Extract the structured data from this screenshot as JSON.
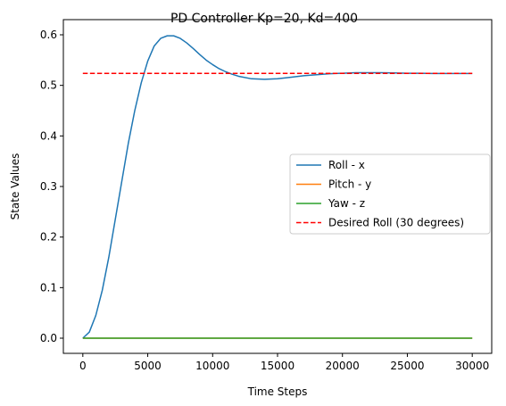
{
  "chart_data": {
    "type": "line",
    "title": "PD Controller Kp=20, Kd=400",
    "xlabel": "Time Steps",
    "ylabel": "State Values",
    "xlim": [
      -1500,
      31500
    ],
    "ylim": [
      -0.03,
      0.63
    ],
    "xticks": [
      0,
      5000,
      10000,
      15000,
      20000,
      25000,
      30000
    ],
    "yticks": [
      0.0,
      0.1,
      0.2,
      0.3,
      0.4,
      0.5,
      0.6
    ],
    "grid": false,
    "legend_position": "center-right",
    "series": [
      {
        "name": "Roll - x",
        "color": "#1f77b4",
        "style": "solid",
        "x": [
          0,
          500,
          1000,
          1500,
          2000,
          2500,
          3000,
          3500,
          4000,
          4500,
          5000,
          5500,
          6000,
          6500,
          7000,
          7500,
          8000,
          8500,
          9000,
          9500,
          10000,
          10500,
          11000,
          11500,
          12000,
          13000,
          14000,
          15000,
          16000,
          17000,
          18000,
          19000,
          20000,
          21000,
          22000,
          23000,
          24000,
          25000,
          26000,
          27000,
          28000,
          29000,
          30000
        ],
        "y": [
          0.0,
          0.012,
          0.045,
          0.095,
          0.16,
          0.235,
          0.31,
          0.385,
          0.45,
          0.505,
          0.548,
          0.578,
          0.593,
          0.598,
          0.598,
          0.593,
          0.584,
          0.573,
          0.561,
          0.55,
          0.541,
          0.533,
          0.527,
          0.522,
          0.518,
          0.513,
          0.512,
          0.513,
          0.516,
          0.519,
          0.521,
          0.523,
          0.524,
          0.525,
          0.525,
          0.525,
          0.5245,
          0.524,
          0.524,
          0.5235,
          0.5235,
          0.5235,
          0.5235
        ]
      },
      {
        "name": "Pitch - y",
        "color": "#ff7f0e",
        "style": "solid",
        "x": [
          0,
          30000
        ],
        "y": [
          0.0,
          0.0
        ]
      },
      {
        "name": "Yaw - z",
        "color": "#2ca02c",
        "style": "solid",
        "x": [
          0,
          30000
        ],
        "y": [
          0.0,
          0.0
        ]
      },
      {
        "name": "Desired Roll (30 degrees)",
        "color": "#ff0000",
        "style": "dashed",
        "x": [
          0,
          30000
        ],
        "y": [
          0.5236,
          0.5236
        ]
      }
    ]
  }
}
